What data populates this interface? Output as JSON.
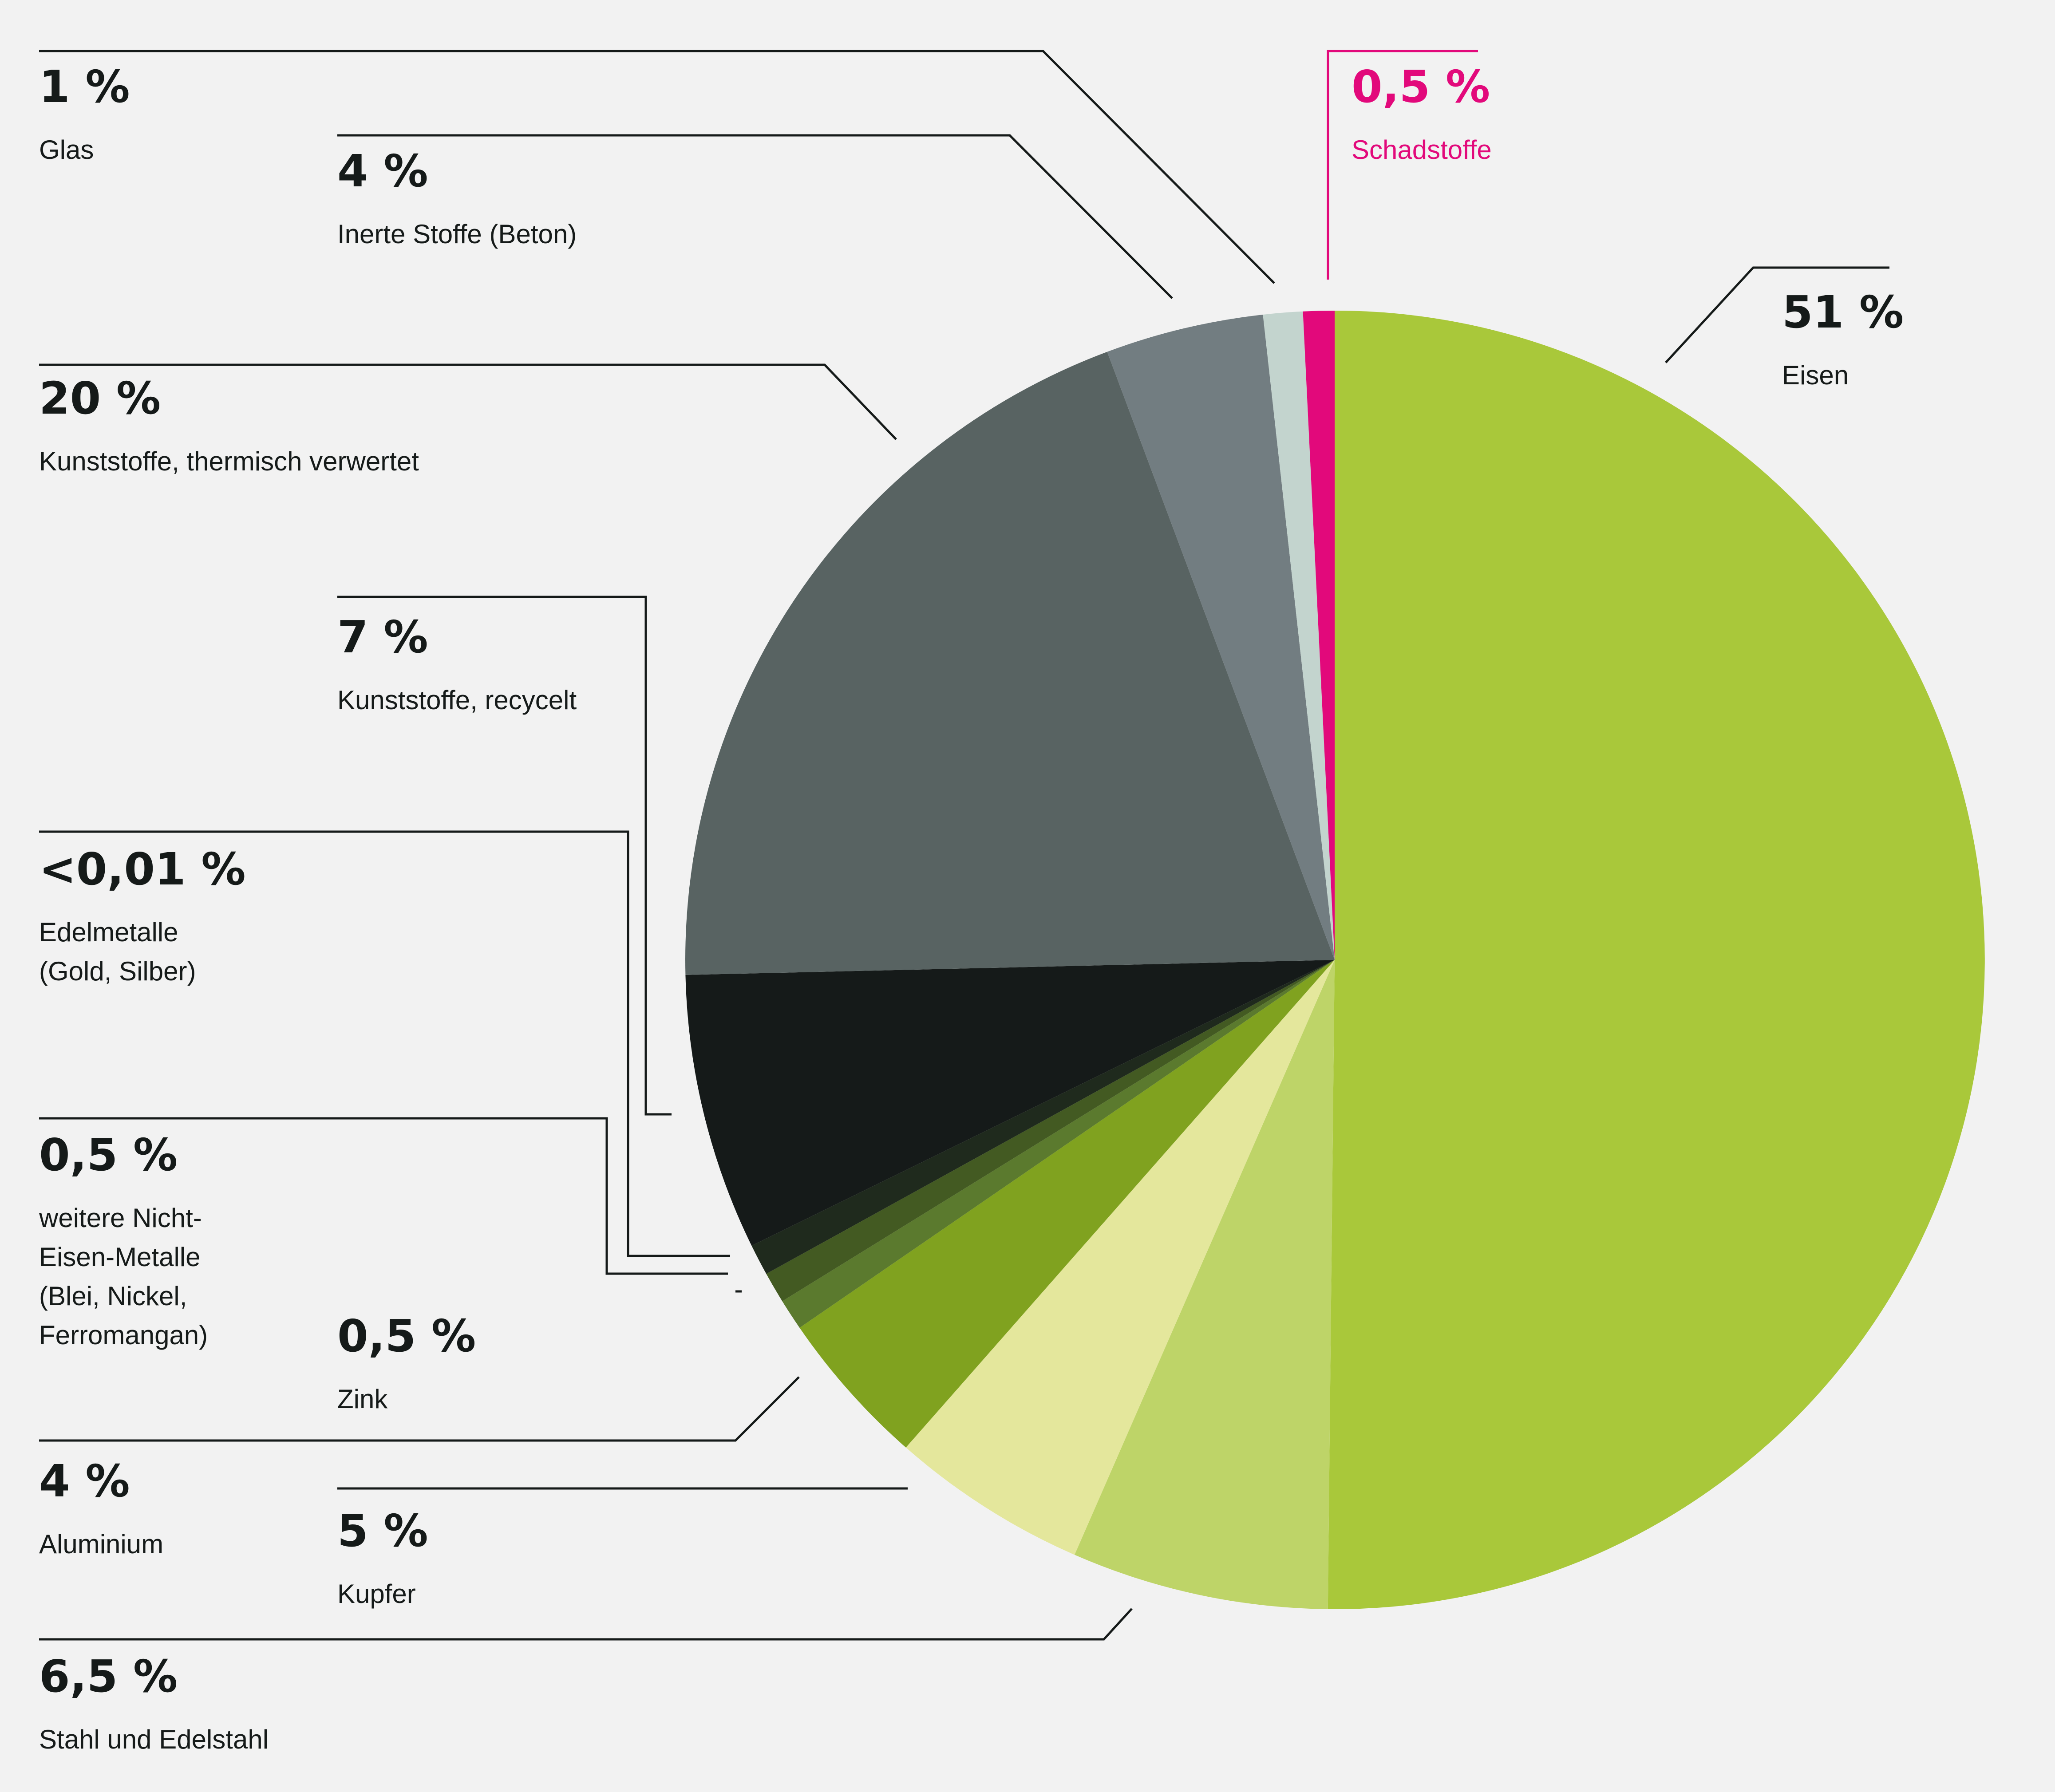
{
  "chart_data": {
    "type": "pie",
    "start": "12 o'clock, clockwise",
    "slices": [
      {
        "value_label": "51 %",
        "label_lines": [
          "Eisen"
        ],
        "value": 51,
        "color": "#a9c83a"
      },
      {
        "value_label": "6,5 %",
        "label_lines": [
          "Stahl und Edelstahl"
        ],
        "value": 6.5,
        "color": "#bed468"
      },
      {
        "value_label": "5 %",
        "label_lines": [
          "Kupfer"
        ],
        "value": 5,
        "color": "#e4e79c"
      },
      {
        "value_label": "4 %",
        "label_lines": [
          "Aluminium"
        ],
        "value": 4,
        "color": "#80a21f"
      },
      {
        "value_label": "0,5 %",
        "label_lines": [
          "Zink"
        ],
        "value": 0.5,
        "color": "#5b7a2e"
      },
      {
        "value_label": "0,5 %",
        "label_lines": [
          "weitere Nicht-",
          "Eisen-Metalle",
          "(Blei, Nickel,",
          "Ferromangan)"
        ],
        "value": 0.5,
        "color": "#435a22"
      },
      {
        "value_label": "<0,01 %",
        "label_lines": [
          "Edelmetalle",
          "(Gold, Silber)"
        ],
        "value": 0.01,
        "color": "#1f2a1d"
      },
      {
        "value_label": "7 %",
        "label_lines": [
          "Kunststoffe, recycelt"
        ],
        "value": 7,
        "color": "#151a19"
      },
      {
        "value_label": "20 %",
        "label_lines": [
          "Kunststoffe, thermisch verwertet"
        ],
        "value": 20,
        "color": "#586362"
      },
      {
        "value_label": "4 %",
        "label_lines": [
          "Inerte Stoffe (Beton)"
        ],
        "value": 4,
        "color": "#727d81"
      },
      {
        "value_label": "1 %",
        "label_lines": [
          "Glas"
        ],
        "value": 1,
        "color": "#c3d4ce"
      },
      {
        "value_label": "0,5 %",
        "label_lines": [
          "Schadstoffe"
        ],
        "value": 0.5,
        "color": "#e2097b",
        "accent": true
      }
    ]
  }
}
